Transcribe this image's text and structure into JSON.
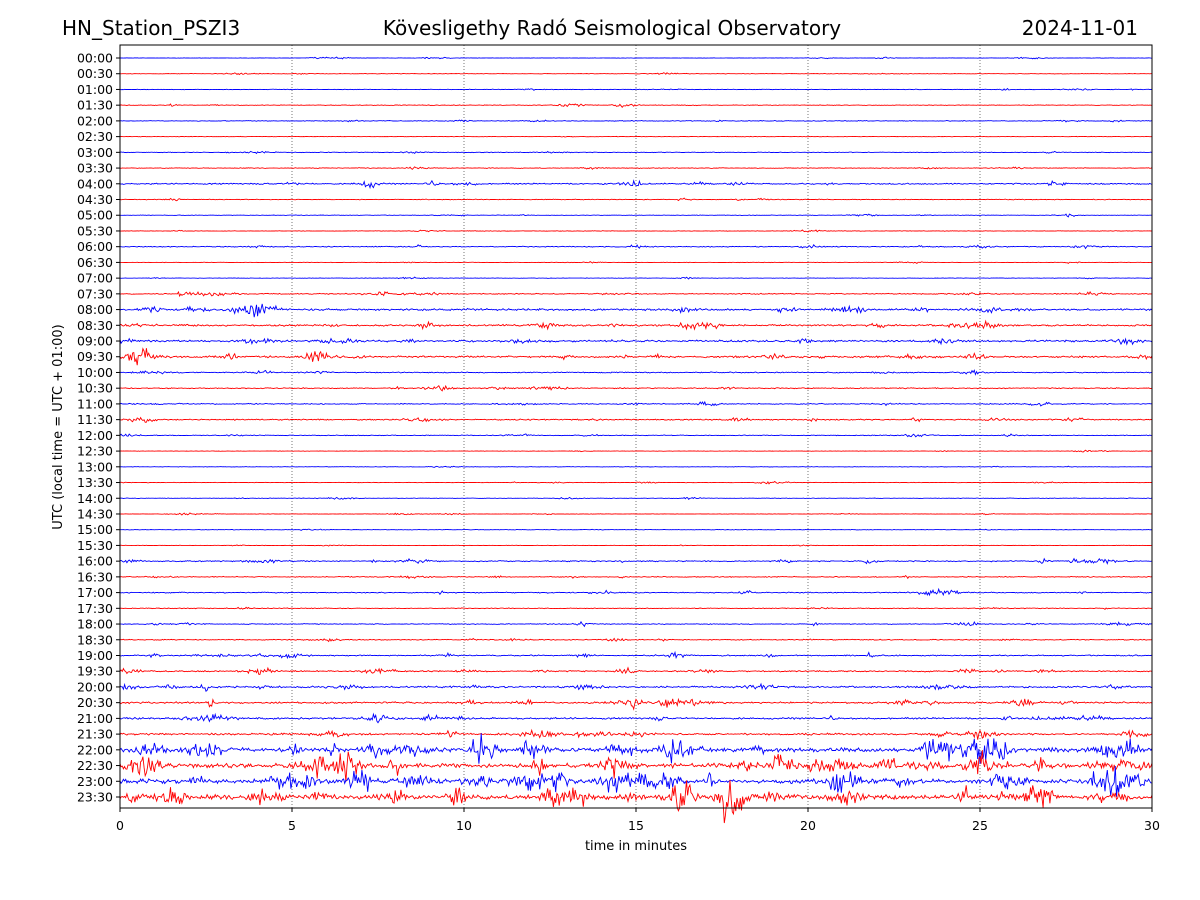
{
  "header": {
    "station": "HN_Station_PSZI3",
    "observatory": "Kövesligethy Radó Seismological Observatory",
    "date": "2024-11-01"
  },
  "chart_data": {
    "type": "line",
    "subtype": "helicorder",
    "xlabel": "time in minutes",
    "ylabel": "UTC (local time = UTC + 01:00)",
    "xlim": [
      0,
      30
    ],
    "x_ticks": [
      "0",
      "5",
      "10",
      "15",
      "20",
      "25",
      "30"
    ],
    "grid": "vertical dotted at x ticks",
    "legend": "none",
    "colors": [
      "#0000ff",
      "#ff0000"
    ],
    "rows": [
      "00:00",
      "00:30",
      "01:00",
      "01:30",
      "02:00",
      "02:30",
      "03:00",
      "03:30",
      "04:00",
      "04:30",
      "05:00",
      "05:30",
      "06:00",
      "06:30",
      "07:00",
      "07:30",
      "08:00",
      "08:30",
      "09:00",
      "09:30",
      "10:00",
      "10:30",
      "11:00",
      "11:30",
      "12:00",
      "12:30",
      "13:00",
      "13:30",
      "14:00",
      "14:30",
      "15:00",
      "15:30",
      "16:00",
      "16:30",
      "17:00",
      "17:30",
      "18:00",
      "18:30",
      "19:00",
      "19:30",
      "20:00",
      "20:30",
      "21:00",
      "21:30",
      "22:00",
      "22:30",
      "23:00",
      "23:30"
    ],
    "relative_amplitude": [
      0.3,
      0.3,
      0.4,
      0.4,
      0.5,
      0.3,
      0.4,
      0.5,
      0.9,
      0.5,
      0.3,
      0.4,
      0.6,
      0.3,
      0.3,
      0.7,
      1.3,
      1.2,
      1.3,
      1.3,
      0.7,
      0.7,
      0.7,
      0.8,
      0.5,
      0.3,
      0.3,
      0.3,
      0.3,
      0.3,
      0.3,
      0.3,
      0.8,
      0.6,
      0.7,
      0.5,
      0.6,
      0.6,
      0.8,
      0.9,
      1.2,
      1.2,
      1.2,
      1.3,
      2.8,
      3.0,
      3.0,
      3.0
    ]
  }
}
